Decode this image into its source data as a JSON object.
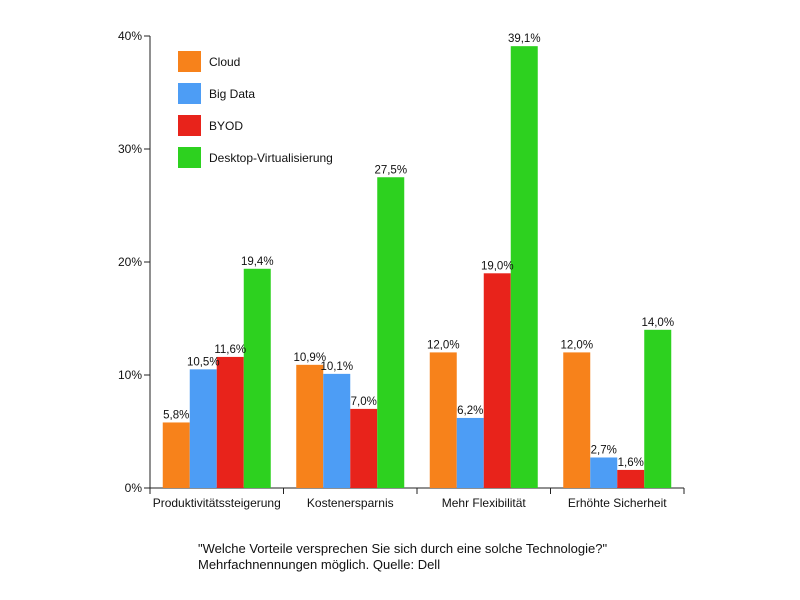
{
  "chart_data": {
    "type": "bar",
    "categories": [
      "Produktivitätssteigerung",
      "Kostenersparnis",
      "Mehr Flexibilität",
      "Erhöhte Sicherheit"
    ],
    "series": [
      {
        "name": "Cloud",
        "color": "#f7821b",
        "values": [
          5.8,
          10.9,
          12.0,
          12.0
        ],
        "labels": [
          "5,8%",
          "10,9%",
          "12,0%",
          "12,0%"
        ]
      },
      {
        "name": "Big Data",
        "color": "#4d9df5",
        "values": [
          10.5,
          10.1,
          6.2,
          2.7
        ],
        "labels": [
          "10,5%",
          "10,1%",
          "6,2%",
          "2,7%"
        ]
      },
      {
        "name": "BYOD",
        "color": "#e8231b",
        "values": [
          11.6,
          7.0,
          19.0,
          1.6
        ],
        "labels": [
          "11,6%",
          "7,0%",
          "19,0%",
          "1,6%"
        ]
      },
      {
        "name": "Desktop-Virtualisierung",
        "color": "#2dd11f",
        "values": [
          19.4,
          27.5,
          39.1,
          14.0
        ],
        "labels": [
          "19,4%",
          "27,5%",
          "39,1%",
          "14,0%"
        ]
      }
    ],
    "ylim": [
      0,
      40
    ],
    "yticks": [
      0,
      10,
      20,
      30,
      40
    ],
    "ytick_labels": [
      "0%",
      "10%",
      "20%",
      "30%",
      "40%"
    ],
    "legend_position": "top-left",
    "grid": false
  },
  "caption": {
    "line1": "\"Welche Vorteile versprechen Sie sich durch eine solche Technologie?\"",
    "line2": "Mehrfachnennungen möglich. Quelle: Dell"
  }
}
